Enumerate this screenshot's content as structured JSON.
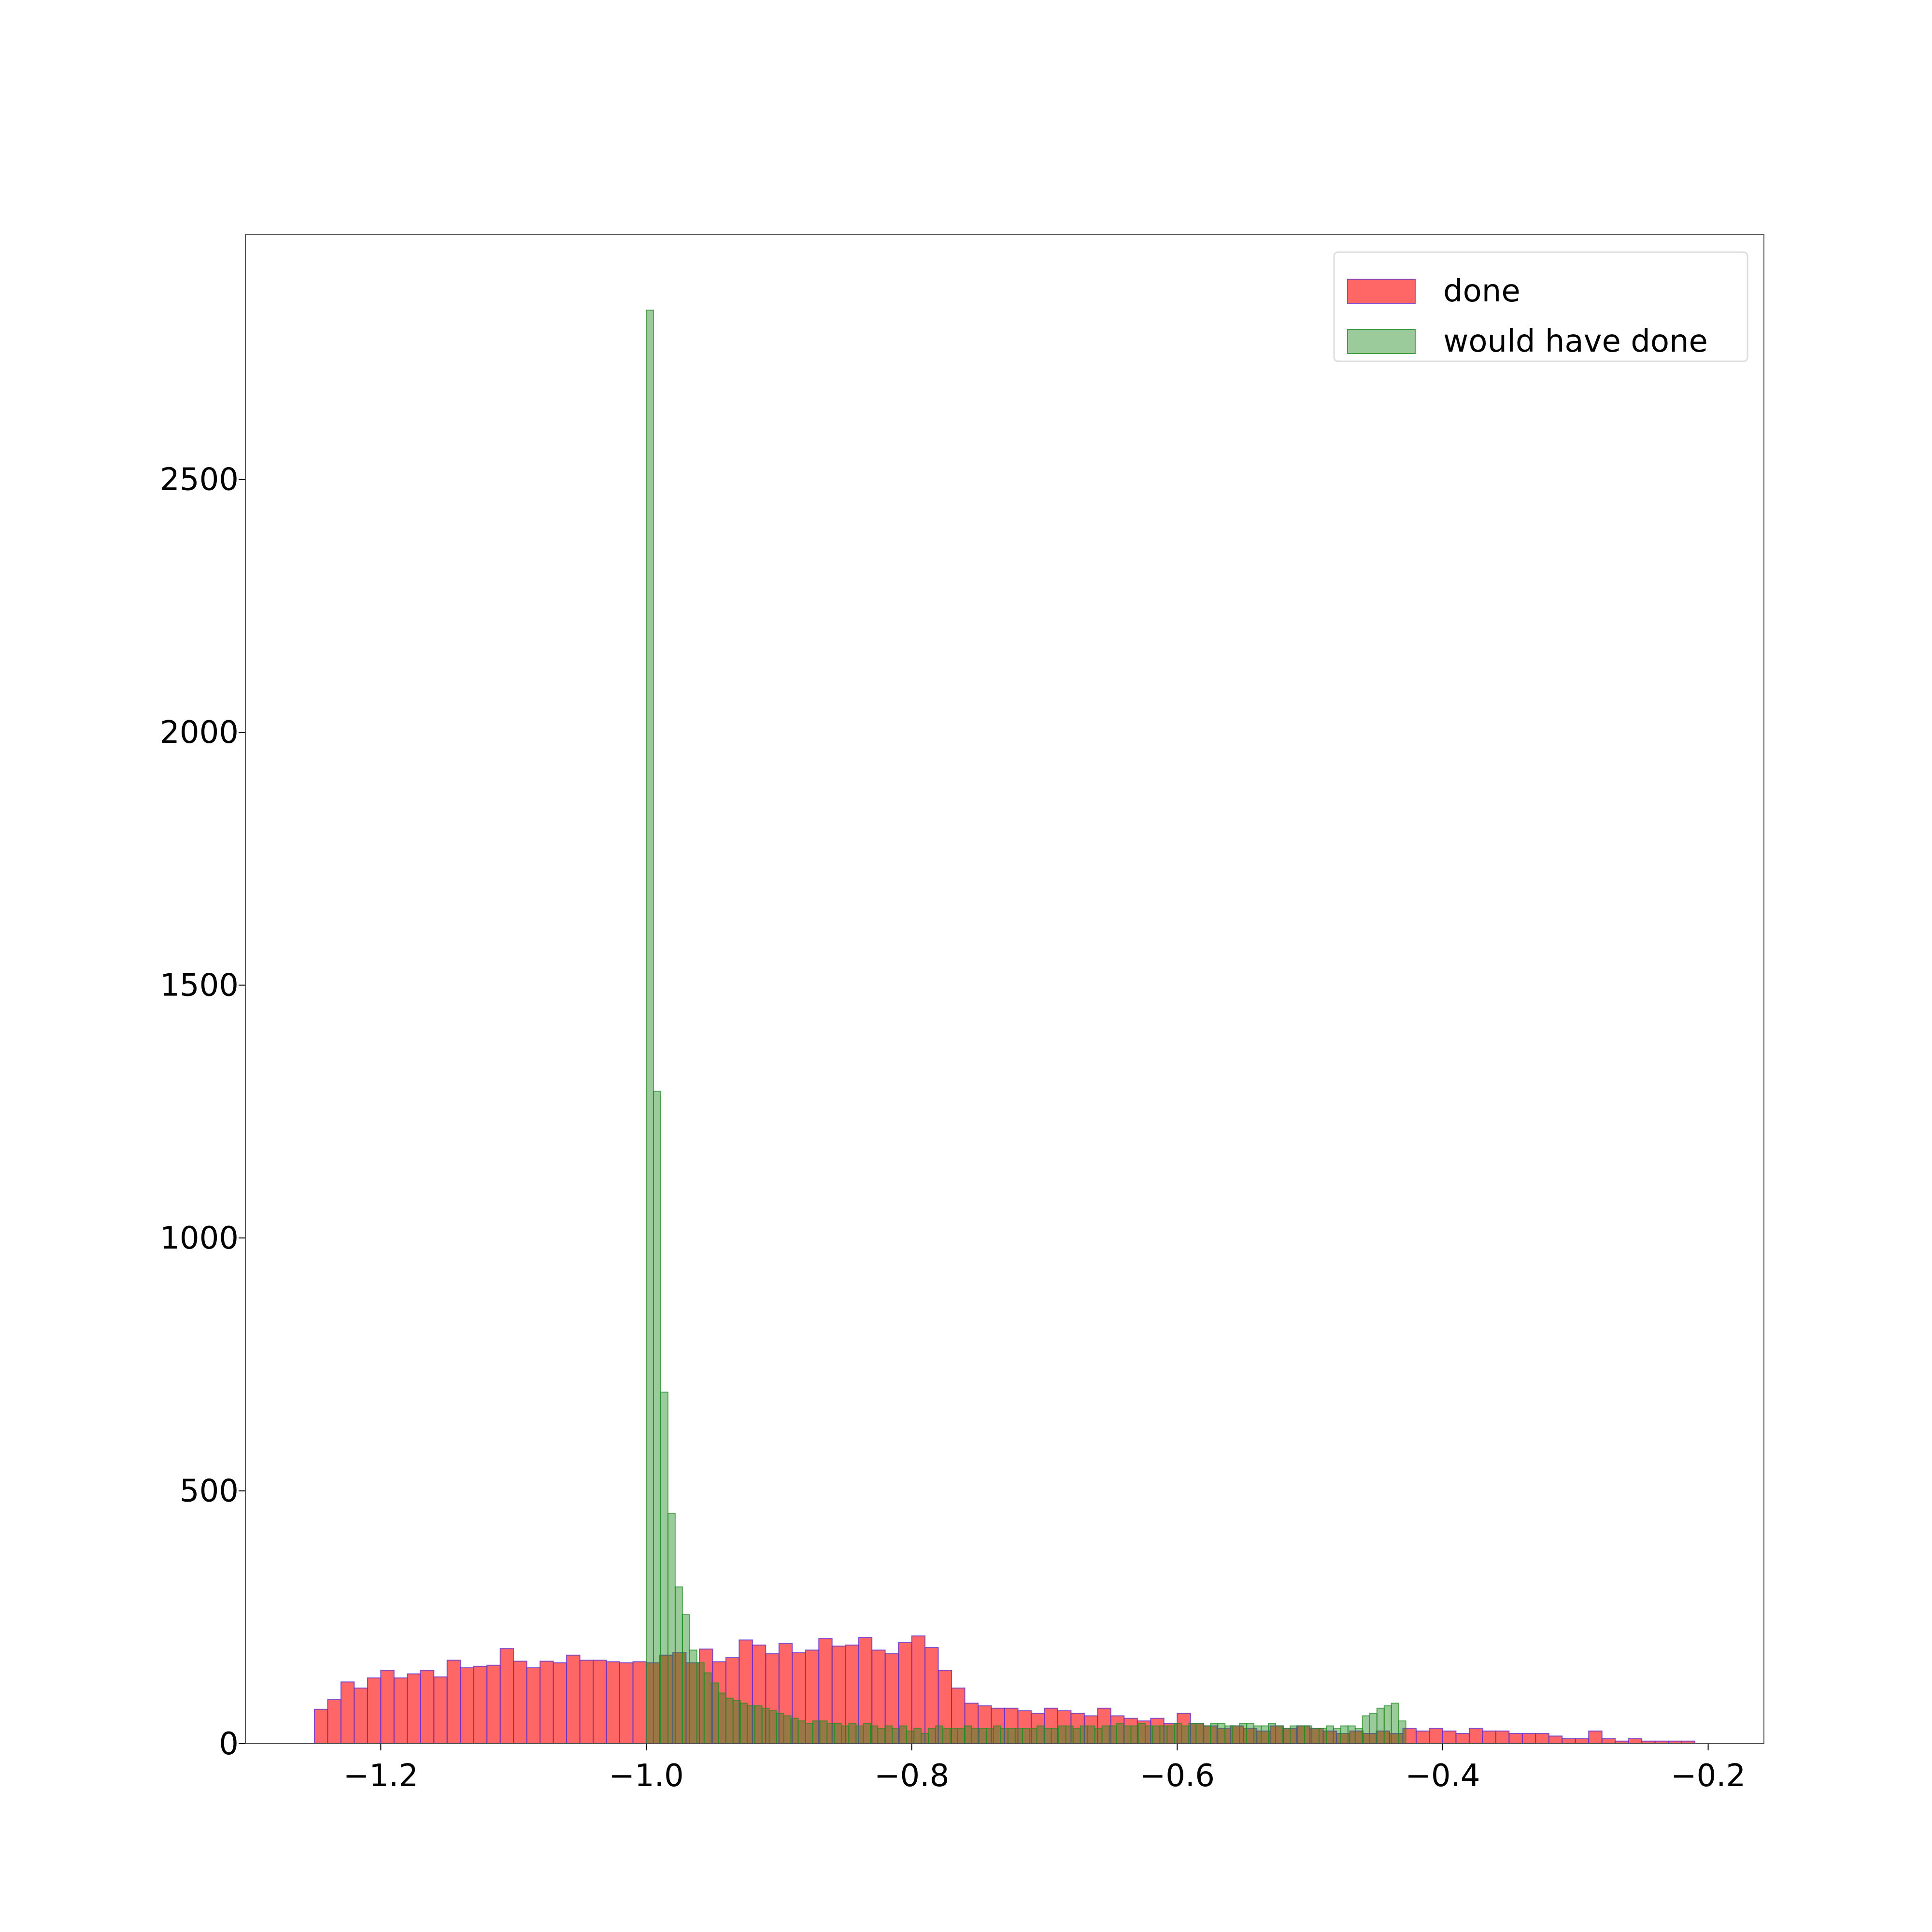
{
  "chart_data": {
    "type": "bar",
    "title": "",
    "xlabel": "",
    "ylabel": "",
    "xlim": [
      -1.302,
      -0.158
    ],
    "ylim": [
      0,
      2985
    ],
    "x_ticks": [
      {
        "value": -1.2,
        "label": "−1.2"
      },
      {
        "value": -1.0,
        "label": "−1.0"
      },
      {
        "value": -0.8,
        "label": "−0.8"
      },
      {
        "value": -0.6,
        "label": "−0.6"
      },
      {
        "value": -0.4,
        "label": "−0.4"
      },
      {
        "value": -0.2,
        "label": "−0.2"
      }
    ],
    "y_ticks": [
      {
        "value": 0,
        "label": "0"
      },
      {
        "value": 500,
        "label": "500"
      },
      {
        "value": 1000,
        "label": "1000"
      },
      {
        "value": 1500,
        "label": "1500"
      },
      {
        "value": 2000,
        "label": "2000"
      },
      {
        "value": 2500,
        "label": "2500"
      }
    ],
    "grid": false,
    "legend_position": "top-right",
    "series": [
      {
        "name": "done",
        "color": "#ff0000",
        "alpha": 0.6,
        "edge_color": "#6633cc",
        "bin_start": -1.25,
        "bin_width": 0.01,
        "values": [
          68,
          87,
          122,
          110,
          130,
          145,
          130,
          138,
          145,
          132,
          165,
          150,
          153,
          155,
          188,
          163,
          150,
          163,
          160,
          175,
          165,
          165,
          162,
          160,
          162,
          160,
          175,
          180,
          160,
          187,
          162,
          170,
          205,
          195,
          178,
          198,
          180,
          185,
          208,
          193,
          195,
          210,
          185,
          178,
          200,
          213,
          190,
          145,
          110,
          80,
          75,
          70,
          70,
          65,
          60,
          70,
          65,
          60,
          55,
          70,
          55,
          50,
          45,
          50,
          40,
          60,
          40,
          35,
          30,
          35,
          30,
          25,
          35,
          30,
          35,
          30,
          25,
          20,
          25,
          20,
          25,
          20,
          30,
          25,
          30,
          25,
          20,
          30,
          25,
          25,
          20,
          20,
          20,
          15,
          10,
          10,
          25,
          10,
          5,
          10,
          5,
          5,
          5,
          5
        ]
      },
      {
        "name": "would have done",
        "color": "#228b22",
        "alpha": 0.45,
        "edge_color": "#228b22",
        "bin_start": -1.0,
        "bin_width": 0.00545,
        "values": [
          2835,
          1290,
          695,
          455,
          310,
          255,
          185,
          160,
          140,
          120,
          100,
          90,
          85,
          80,
          75,
          75,
          70,
          65,
          60,
          55,
          50,
          45,
          40,
          45,
          45,
          40,
          40,
          35,
          40,
          35,
          40,
          35,
          30,
          35,
          30,
          35,
          25,
          30,
          20,
          30,
          35,
          30,
          30,
          30,
          35,
          30,
          30,
          30,
          35,
          30,
          30,
          30,
          30,
          30,
          35,
          30,
          30,
          35,
          35,
          30,
          35,
          35,
          30,
          35,
          35,
          40,
          35,
          35,
          40,
          35,
          35,
          35,
          35,
          40,
          35,
          40,
          40,
          35,
          40,
          40,
          35,
          35,
          40,
          40,
          35,
          35,
          40,
          35,
          30,
          35,
          35,
          35,
          30,
          30,
          35,
          30,
          35,
          35,
          30,
          55,
          60,
          70,
          75,
          80,
          45
        ]
      }
    ]
  }
}
